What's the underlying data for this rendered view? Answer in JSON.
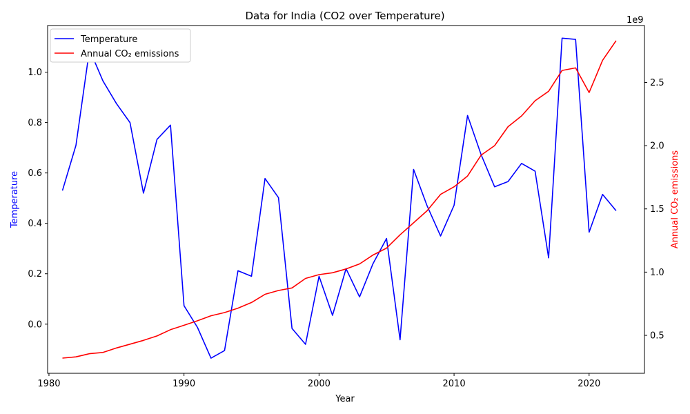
{
  "chart_data": {
    "type": "line",
    "title": "Data for India (CO2 over Temperature)",
    "xlabel": "Year",
    "ylabel_left": "Temperature",
    "ylabel_right": "Annual CO₂ emissions",
    "right_axis_multiplier": "1e9",
    "xlim": [
      1979.9,
      2024.1
    ],
    "ylim_left": [
      -0.195,
      1.185
    ],
    "ylim_right": [
      200000000.0,
      2950000000.0
    ],
    "x_ticks": [
      1980,
      1990,
      2000,
      2010,
      2020
    ],
    "y_left_ticks": [
      0.0,
      0.2,
      0.4,
      0.6,
      0.8,
      1.0
    ],
    "y_left_tick_labels": [
      "0.0",
      "0.2",
      "0.4",
      "0.6",
      "0.8",
      "1.0"
    ],
    "y_right_ticks": [
      0.5,
      1.0,
      1.5,
      2.0,
      2.5
    ],
    "y_right_tick_labels": [
      "0.5",
      "1.0",
      "1.5",
      "2.0",
      "2.5"
    ],
    "legend_position": "top-left",
    "grid": false,
    "x": [
      1981,
      1982,
      1983,
      1984,
      1985,
      1986,
      1987,
      1988,
      1989,
      1990,
      1991,
      1992,
      1993,
      1994,
      1995,
      1996,
      1997,
      1998,
      1999,
      2000,
      2001,
      2002,
      2003,
      2004,
      2005,
      2006,
      2007,
      2008,
      2009,
      2010,
      2011,
      2012,
      2013,
      2014,
      2015,
      2016,
      2017,
      2018,
      2019,
      2020,
      2021,
      2022
    ],
    "series": [
      {
        "name": "Temperature",
        "axis": "left",
        "color": "#0000ff",
        "values": [
          0.53,
          0.71,
          1.09,
          0.965,
          0.875,
          0.8,
          0.52,
          0.733,
          0.79,
          0.073,
          -0.013,
          -0.135,
          -0.105,
          0.212,
          0.19,
          0.578,
          0.502,
          -0.017,
          -0.08,
          0.19,
          0.035,
          0.22,
          0.108,
          0.24,
          0.34,
          -0.062,
          0.614,
          0.47,
          0.35,
          0.472,
          0.828,
          0.673,
          0.545,
          0.566,
          0.638,
          0.607,
          0.263,
          1.135,
          1.13,
          0.365,
          0.515,
          0.45
        ]
      },
      {
        "name": "Annual CO₂ emissions",
        "axis": "right",
        "color": "#ff0000",
        "values": [
          320000000.0,
          330000000.0,
          355000000.0,
          365000000.0,
          400000000.0,
          430000000.0,
          460000000.0,
          495000000.0,
          545000000.0,
          580000000.0,
          615000000.0,
          655000000.0,
          680000000.0,
          715000000.0,
          760000000.0,
          825000000.0,
          855000000.0,
          875000000.0,
          950000000.0,
          980000000.0,
          995000000.0,
          1025000000.0,
          1065000000.0,
          1135000000.0,
          1190000000.0,
          1295000000.0,
          1390000000.0,
          1485000000.0,
          1615000000.0,
          1675000000.0,
          1760000000.0,
          1925000000.0,
          2000000000.0,
          2150000000.0,
          2235000000.0,
          2355000000.0,
          2430000000.0,
          2595000000.0,
          2615000000.0,
          2420000000.0,
          2675000000.0,
          2830000000.0
        ]
      }
    ]
  }
}
